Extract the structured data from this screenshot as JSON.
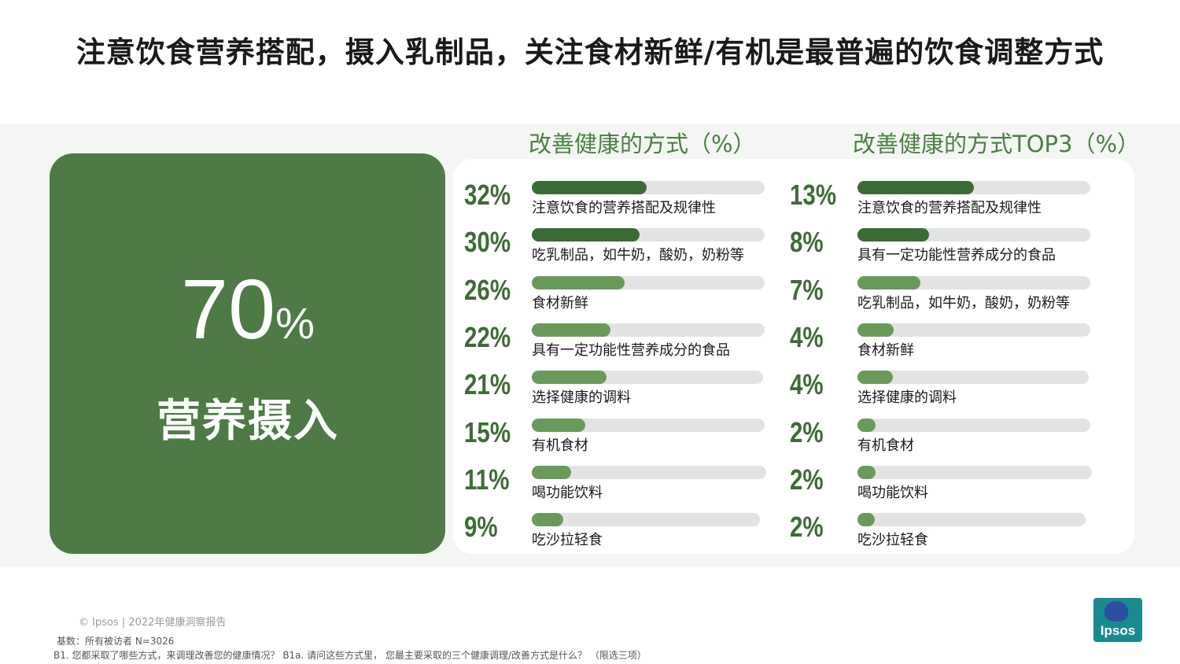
{
  "title": "注意饮食营养搭配，摄入乳制品，关注食材新鲜/有机是最普遍的饮食调整方式",
  "kpi": {
    "value": "70",
    "unit": "%",
    "label": "营养摄入"
  },
  "colors": {
    "dark_green": "#3b6b35",
    "light_green": "#6a9a5a",
    "track": "#e3e3e3",
    "card": "#4d7a45"
  },
  "chart_data": [
    {
      "type": "bar",
      "title": "改善健康的方式（%）",
      "categories": [
        "注意饮食的营养搭配及规律性",
        "吃乳制品，如牛奶，酸奶，奶粉等",
        "食材新鲜",
        "具有一定功能性营养成分的食品",
        "选择健康的调料",
        "有机食材",
        "喝功能饮料",
        "吃沙拉轻食"
      ],
      "values": [
        32,
        30,
        26,
        22,
        21,
        15,
        11,
        9
      ],
      "labels": [
        "32%",
        "30%",
        "26%",
        "22%",
        "21%",
        "15%",
        "11%",
        "9%"
      ],
      "xlim": [
        0,
        65
      ]
    },
    {
      "type": "bar",
      "title": "改善健康的方式TOP3（%）",
      "categories": [
        "注意饮食的营养搭配及规律性",
        "具有一定功能性营养成分的食品",
        "吃乳制品，如牛奶，酸奶，奶粉等",
        "食材新鲜",
        "选择健康的调料",
        "有机食材",
        "喝功能饮料",
        "吃沙拉轻食"
      ],
      "values": [
        13,
        8,
        7,
        4,
        4,
        2,
        2,
        2
      ],
      "labels": [
        "13%",
        "8%",
        "7%",
        "4%",
        "4%",
        "2%",
        "2%",
        "2%"
      ],
      "xlim": [
        0,
        26
      ]
    }
  ],
  "footer": {
    "copyright": "© Ipsos | 2022年健康洞察报告",
    "base": "基数：所有被访者 N=3026",
    "question": "B1. 您都采取了哪些方式，来调理改善您的健康情况？ B1a. 请问这些方式里， 您最主要采取的三个健康调理/改善方式是什么？ （限选三项）",
    "logo": "Ipsos"
  }
}
